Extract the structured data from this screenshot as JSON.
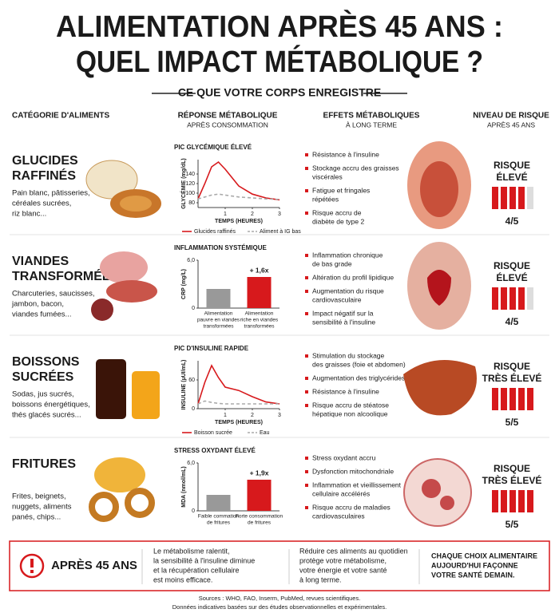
{
  "title": [
    "ALIMENTATION APRÈS 45 ANS :",
    "QUEL IMPACT MÉTABOLIQUE ?"
  ],
  "subtitle": "CE QUE VOTRE CORPS ENREGISTRE",
  "columns": [
    {
      "title": "CATÉGORIE D'ALIMENTS"
    },
    {
      "title": "RÉPONSE MÉTABOLIQUE",
      "sub": "APRÈS CONSOMMATION"
    },
    {
      "title": "EFFETS MÉTABOLIQUES",
      "sub": "À LONG TERME"
    },
    {
      "title": "NIVEAU DE RISQUE",
      "sub": "APRÈS 45 ANS"
    }
  ],
  "rows": [
    {
      "name": [
        "GLUCIDES",
        "RAFFINÉS"
      ],
      "desc": [
        "Pain blanc, pâtisseries,",
        "céréales sucrées,",
        "riz blanc..."
      ],
      "chart": {
        "type": "line",
        "title": "PIC GLYCÉMIQUE ÉLEVÉ",
        "ylabel": "GLYCÉMIE (mg/dL)",
        "xlabel": "TEMPS (HEURES)",
        "x": [
          0,
          0.25,
          0.5,
          0.75,
          1,
          1.5,
          2,
          2.5,
          3
        ],
        "xlim": [
          0,
          3
        ],
        "xticks": [
          1,
          2,
          3
        ],
        "ylim": [
          70,
          170
        ],
        "yticks": [
          80,
          100,
          120,
          140
        ],
        "series": [
          {
            "name": "Glucides raffinés",
            "color": "#d7191c",
            "style": "solid",
            "values": [
              88,
              120,
              155,
              165,
              150,
              115,
              98,
              90,
              86
            ]
          },
          {
            "name": "Aliment à IG bas",
            "color": "#aaaaaa",
            "style": "dashed",
            "values": [
              88,
              92,
              96,
              98,
              96,
              92,
              90,
              88,
              87
            ]
          }
        ]
      },
      "effects": [
        [
          "Résistance à l'insuline"
        ],
        [
          "Stockage accru des graisses",
          "viscérales"
        ],
        [
          "Fatigue et fringales",
          "répétées"
        ],
        [
          "Risque accru de",
          "diabète de type 2"
        ]
      ],
      "risk": {
        "label": [
          "RISQUE",
          "ÉLEVÉ"
        ],
        "score": 4,
        "max": 5,
        "score_label": "4/5"
      }
    },
    {
      "name": [
        "VIANDES",
        "TRANSFORMÉES"
      ],
      "desc": [
        "Charcuteries, saucisses,",
        "jambon, bacon,",
        "viandes fumées..."
      ],
      "chart": {
        "type": "bar",
        "title": "INFLAMMATION SYSTÉMIQUE",
        "ylabel": "CRP (mg/L)",
        "ylim": [
          0,
          6
        ],
        "yticks": [
          0,
          {
            "value": 6,
            "label": "6,0"
          }
        ],
        "categories": [
          [
            "Alimentation",
            "pauvre en viandes",
            "transformées"
          ],
          [
            "Alimentation",
            "riche en viandes",
            "transformées"
          ]
        ],
        "values": [
          2.4,
          3.9
        ],
        "colors": [
          "#999999",
          "#d7191c"
        ],
        "annotation": "+ 1,6x"
      },
      "effects": [
        [
          "Inflammation chronique",
          "de bas grade"
        ],
        [
          "Altération du profil lipidique"
        ],
        [
          "Augmentation du risque",
          "cardiovasculaire"
        ],
        [
          "Impact négatif sur la",
          "sensibilité à l'insuline"
        ]
      ],
      "risk": {
        "label": [
          "RISQUE",
          "ÉLEVÉ"
        ],
        "score": 4,
        "max": 5,
        "score_label": "4/5"
      }
    },
    {
      "name": [
        "BOISSONS",
        "SUCRÉES"
      ],
      "desc": [
        "Sodas, jus sucrés,",
        "boissons énergétiques,",
        "thés glacés sucrés..."
      ],
      "chart": {
        "type": "line",
        "title": "PIC D'INSULINE RAPIDE",
        "ylabel": "INSULINE (µUI/mL)",
        "xlabel": "TEMPS (HEURES)",
        "x": [
          0,
          0.25,
          0.5,
          0.75,
          1,
          1.5,
          2,
          2.5,
          3
        ],
        "xlim": [
          0,
          3
        ],
        "xticks": [
          1,
          2,
          3
        ],
        "ylim": [
          0,
          100
        ],
        "yticks": [
          0,
          60
        ],
        "series": [
          {
            "name": "Boisson sucrée",
            "color": "#d7191c",
            "style": "solid",
            "values": [
              10,
              55,
              90,
              65,
              45,
              38,
              25,
              14,
              10
            ]
          },
          {
            "name": "Eau",
            "color": "#aaaaaa",
            "style": "dashed",
            "values": [
              10,
              16,
              13,
              11,
              10,
              10,
              10,
              10,
              10
            ]
          }
        ]
      },
      "effects": [
        [
          "Stimulation du stockage",
          "des graisses (foie et abdomen)"
        ],
        [
          "Augmentation des triglycérides"
        ],
        [
          "Résistance à l'insuline"
        ],
        [
          "Risque accru de stéatose",
          "hépatique non alcoolique"
        ]
      ],
      "risk": {
        "label": [
          "RISQUE",
          "TRÈS ÉLEVÉ"
        ],
        "score": 5,
        "max": 5,
        "score_label": "5/5"
      }
    },
    {
      "name": [
        "FRITURES"
      ],
      "desc": [
        "Frites, beignets,",
        "nuggets, aliments",
        "panés, chips..."
      ],
      "chart": {
        "type": "bar",
        "title": "STRESS OXYDANT ÉLEVÉ",
        "ylabel": "MDA (nmol/mL)",
        "ylim": [
          0,
          6
        ],
        "yticks": [
          0,
          {
            "value": 6,
            "label": "6,0"
          }
        ],
        "categories": [
          [
            "Faible commation",
            "de fritures"
          ],
          [
            "Forte consommation",
            "de fritures"
          ]
        ],
        "values": [
          2.0,
          3.9
        ],
        "colors": [
          "#999999",
          "#d7191c"
        ],
        "annotation": "+ 1,9x"
      },
      "effects": [
        [
          "Stress oxydant accru"
        ],
        [
          "Dysfonction mitochondriale"
        ],
        [
          "Inflammation et vieillissement",
          "cellulaire accélérés"
        ],
        [
          "Risque accru de maladies",
          "cardiovasculaires"
        ]
      ],
      "risk": {
        "label": [
          "RISQUE",
          "TRÈS ÉLEVÉ"
        ],
        "score": 5,
        "max": 5,
        "score_label": "5/5"
      }
    }
  ],
  "footer": {
    "heading": "APRÈS 45 ANS",
    "blocks": [
      [
        "Le métabolisme ralentit,",
        "la sensibilité à l'insuline diminue",
        "et la récupération cellulaire",
        "est moins efficace."
      ],
      [
        "Réduire ces aliments au quotidien",
        "protège votre métabolisme,",
        "votre énergie et votre santé",
        "à long terme."
      ],
      [
        "CHAQUE CHOIX ALIMENTAIRE",
        "AUJOURD'HUI FAÇONNE",
        "VOTRE SANTÉ DEMAIN."
      ]
    ]
  },
  "sources": [
    "Sources : WHO, FAO, Inserm, PubMed, revues scientifiques.",
    "Données indicatives basées sur des études observationnelles et expérimentales."
  ]
}
